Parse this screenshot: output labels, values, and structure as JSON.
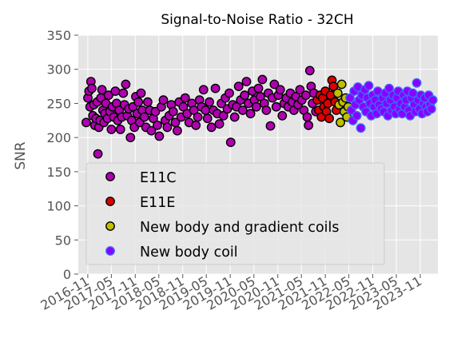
{
  "chart_data": {
    "type": "scatter",
    "title": "Signal-to-Noise Ratio - 32CH",
    "xlabel": "",
    "ylabel": "SNR",
    "ylim": [
      0,
      350
    ],
    "xlim": [
      "2016-08-20",
      "2024-03-15"
    ],
    "yticks": [
      0,
      50,
      100,
      150,
      200,
      250,
      300,
      350
    ],
    "xticks": [
      "2016-11",
      "2017-05",
      "2017-11",
      "2018-05",
      "2018-11",
      "2019-05",
      "2019-11",
      "2020-05",
      "2020-11",
      "2021-05",
      "2021-11",
      "2022-05",
      "2022-11",
      "2023-05",
      "2023-11"
    ],
    "grid": true,
    "legend_position": "lower-left",
    "series": [
      {
        "name": "E11C",
        "color": "#b000b0",
        "edge": "#000000",
        "points": [
          [
            "2016-10-20",
            222
          ],
          [
            "2016-11-02",
            258
          ],
          [
            "2016-11-10",
            268
          ],
          [
            "2016-11-18",
            245
          ],
          [
            "2016-11-25",
            282
          ],
          [
            "2016-12-02",
            272
          ],
          [
            "2016-12-10",
            232
          ],
          [
            "2016-12-18",
            248
          ],
          [
            "2016-12-25",
            218
          ],
          [
            "2017-01-03",
            228
          ],
          [
            "2017-01-12",
            252
          ],
          [
            "2017-01-18",
            176
          ],
          [
            "2017-01-25",
            215
          ],
          [
            "2017-02-03",
            225
          ],
          [
            "2017-02-10",
            258
          ],
          [
            "2017-02-18",
            270
          ],
          [
            "2017-02-25",
            240
          ],
          [
            "2017-03-05",
            222
          ],
          [
            "2017-03-12",
            235
          ],
          [
            "2017-03-20",
            250
          ],
          [
            "2017-04-01",
            228
          ],
          [
            "2017-04-10",
            262
          ],
          [
            "2017-04-20",
            238
          ],
          [
            "2017-05-01",
            212
          ],
          [
            "2017-05-10",
            245
          ],
          [
            "2017-05-20",
            230
          ],
          [
            "2017-06-01",
            268
          ],
          [
            "2017-06-10",
            250
          ],
          [
            "2017-06-20",
            225
          ],
          [
            "2017-07-01",
            240
          ],
          [
            "2017-07-10",
            212
          ],
          [
            "2017-07-20",
            230
          ],
          [
            "2017-08-01",
            265
          ],
          [
            "2017-08-10",
            248
          ],
          [
            "2017-08-20",
            278
          ],
          [
            "2017-09-01",
            232
          ],
          [
            "2017-09-12",
            242
          ],
          [
            "2017-09-25",
            200
          ],
          [
            "2017-10-05",
            225
          ],
          [
            "2017-10-15",
            245
          ],
          [
            "2017-10-25",
            215
          ],
          [
            "2017-11-05",
            260
          ],
          [
            "2017-11-15",
            235
          ],
          [
            "2017-11-25",
            252
          ],
          [
            "2017-12-05",
            222
          ],
          [
            "2017-12-15",
            265
          ],
          [
            "2017-12-25",
            240
          ],
          [
            "2018-01-10",
            230
          ],
          [
            "2018-01-22",
            215
          ],
          [
            "2018-02-05",
            252
          ],
          [
            "2018-02-20",
            240
          ],
          [
            "2018-03-05",
            210
          ],
          [
            "2018-03-20",
            228
          ],
          [
            "2018-04-05",
            238
          ],
          [
            "2018-04-20",
            218
          ],
          [
            "2018-05-05",
            202
          ],
          [
            "2018-05-20",
            245
          ],
          [
            "2018-06-05",
            255
          ],
          [
            "2018-06-20",
            225
          ],
          [
            "2018-07-05",
            215
          ],
          [
            "2018-07-20",
            232
          ],
          [
            "2018-08-05",
            248
          ],
          [
            "2018-08-20",
            238
          ],
          [
            "2018-09-05",
            222
          ],
          [
            "2018-09-20",
            210
          ],
          [
            "2018-10-05",
            252
          ],
          [
            "2018-10-20",
            230
          ],
          [
            "2018-11-05",
            245
          ],
          [
            "2018-11-20",
            258
          ],
          [
            "2018-12-05",
            235
          ],
          [
            "2018-12-20",
            222
          ],
          [
            "2019-01-10",
            250
          ],
          [
            "2019-01-25",
            240
          ],
          [
            "2019-02-10",
            218
          ],
          [
            "2019-02-25",
            230
          ],
          [
            "2019-03-10",
            255
          ],
          [
            "2019-03-25",
            245
          ],
          [
            "2019-04-10",
            270
          ],
          [
            "2019-04-25",
            240
          ],
          [
            "2019-05-10",
            228
          ],
          [
            "2019-05-25",
            252
          ],
          [
            "2019-06-10",
            215
          ],
          [
            "2019-06-25",
            240
          ],
          [
            "2019-07-10",
            272
          ],
          [
            "2019-07-25",
            235
          ],
          [
            "2019-08-10",
            220
          ],
          [
            "2019-08-25",
            250
          ],
          [
            "2019-09-10",
            232
          ],
          [
            "2019-09-25",
            258
          ],
          [
            "2019-10-10",
            242
          ],
          [
            "2019-10-25",
            265
          ],
          [
            "2019-11-05",
            193
          ],
          [
            "2019-11-20",
            248
          ],
          [
            "2019-12-05",
            230
          ],
          [
            "2019-12-20",
            245
          ],
          [
            "2020-01-05",
            275
          ],
          [
            "2020-01-20",
            255
          ],
          [
            "2020-02-05",
            240
          ],
          [
            "2020-02-20",
            262
          ],
          [
            "2020-03-05",
            282
          ],
          [
            "2020-03-20",
            250
          ],
          [
            "2020-04-05",
            235
          ],
          [
            "2020-04-20",
            268
          ],
          [
            "2020-05-05",
            255
          ],
          [
            "2020-05-20",
            245
          ],
          [
            "2020-06-05",
            272
          ],
          [
            "2020-06-20",
            260
          ],
          [
            "2020-07-05",
            285
          ],
          [
            "2020-07-20",
            250
          ],
          [
            "2020-08-05",
            240
          ],
          [
            "2020-08-20",
            265
          ],
          [
            "2020-09-05",
            217
          ],
          [
            "2020-09-20",
            258
          ],
          [
            "2020-10-05",
            278
          ],
          [
            "2020-10-20",
            245
          ],
          [
            "2020-11-05",
            262
          ],
          [
            "2020-11-20",
            270
          ],
          [
            "2020-12-05",
            232
          ],
          [
            "2020-12-20",
            250
          ],
          [
            "2021-01-05",
            258
          ],
          [
            "2021-01-20",
            245
          ],
          [
            "2021-02-05",
            265
          ],
          [
            "2021-02-20",
            252
          ],
          [
            "2021-03-05",
            240
          ],
          [
            "2021-03-20",
            260
          ],
          [
            "2021-04-05",
            248
          ],
          [
            "2021-04-20",
            270
          ],
          [
            "2021-05-05",
            255
          ],
          [
            "2021-05-20",
            240
          ],
          [
            "2021-06-05",
            262
          ],
          [
            "2021-06-15",
            230
          ],
          [
            "2021-06-25",
            218
          ],
          [
            "2021-07-05",
            298
          ],
          [
            "2021-07-15",
            275
          ],
          [
            "2021-07-25",
            250
          ],
          [
            "2021-08-05",
            265
          ],
          [
            "2021-08-20",
            238
          ]
        ]
      },
      {
        "name": "E11E",
        "color": "#dd0000",
        "edge": "#000000",
        "points": [
          [
            "2021-09-01",
            255
          ],
          [
            "2021-09-12",
            240
          ],
          [
            "2021-09-22",
            262
          ],
          [
            "2021-10-02",
            230
          ],
          [
            "2021-10-12",
            258
          ],
          [
            "2021-10-22",
            245
          ],
          [
            "2021-11-01",
            268
          ],
          [
            "2021-11-10",
            238
          ],
          [
            "2021-11-20",
            250
          ],
          [
            "2021-12-01",
            228
          ],
          [
            "2021-12-12",
            262
          ],
          [
            "2021-12-22",
            284
          ],
          [
            "2022-01-03",
            275
          ],
          [
            "2022-01-15",
            252
          ],
          [
            "2022-01-25",
            240
          ]
        ]
      },
      {
        "name": "New body and gradient coils",
        "color": "#bfbf00",
        "edge": "#000000",
        "points": [
          [
            "2022-02-05",
            265
          ],
          [
            "2022-02-15",
            248
          ],
          [
            "2022-02-25",
            222
          ],
          [
            "2022-03-07",
            278
          ],
          [
            "2022-03-17",
            252
          ],
          [
            "2022-03-27",
            238
          ],
          [
            "2022-04-06",
            258
          ],
          [
            "2022-04-16",
            230
          ],
          [
            "2022-04-26",
            245
          ]
        ]
      },
      {
        "name": "New body coil",
        "color": "#8a00ff",
        "edge": "#3a66ff",
        "points": [
          [
            "2022-05-10",
            258
          ],
          [
            "2022-05-20",
            240
          ],
          [
            "2022-06-01",
            225
          ],
          [
            "2022-06-10",
            268
          ],
          [
            "2022-06-20",
            248
          ],
          [
            "2022-07-01",
            232
          ],
          [
            "2022-07-10",
            274
          ],
          [
            "2022-07-20",
            255
          ],
          [
            "2022-08-01",
            214
          ],
          [
            "2022-08-10",
            262
          ],
          [
            "2022-08-20",
            245
          ],
          [
            "2022-09-01",
            270
          ],
          [
            "2022-09-10",
            238
          ],
          [
            "2022-09-20",
            258
          ],
          [
            "2022-10-01",
            276
          ],
          [
            "2022-10-10",
            250
          ],
          [
            "2022-10-20",
            232
          ],
          [
            "2022-11-01",
            262
          ],
          [
            "2022-11-10",
            245
          ],
          [
            "2022-11-20",
            255
          ],
          [
            "2022-12-01",
            235
          ],
          [
            "2022-12-10",
            268
          ],
          [
            "2022-12-20",
            248
          ],
          [
            "2023-01-05",
            242
          ],
          [
            "2023-01-15",
            258
          ],
          [
            "2023-01-25",
            238
          ],
          [
            "2023-02-05",
            265
          ],
          [
            "2023-02-15",
            250
          ],
          [
            "2023-02-25",
            232
          ],
          [
            "2023-03-07",
            272
          ],
          [
            "2023-03-17",
            255
          ],
          [
            "2023-03-27",
            240
          ],
          [
            "2023-04-06",
            262
          ],
          [
            "2023-04-16",
            245
          ],
          [
            "2023-04-26",
            235
          ],
          [
            "2023-05-06",
            258
          ],
          [
            "2023-05-16",
            268
          ],
          [
            "2023-05-26",
            242
          ],
          [
            "2023-06-05",
            250
          ],
          [
            "2023-06-15",
            235
          ],
          [
            "2023-06-25",
            262
          ],
          [
            "2023-07-05",
            245
          ],
          [
            "2023-07-15",
            255
          ],
          [
            "2023-07-25",
            268
          ],
          [
            "2023-08-05",
            240
          ],
          [
            "2023-08-15",
            232
          ],
          [
            "2023-08-25",
            258
          ],
          [
            "2023-09-05",
            265
          ],
          [
            "2023-09-15",
            248
          ],
          [
            "2023-09-25",
            238
          ],
          [
            "2023-10-05",
            280
          ],
          [
            "2023-10-15",
            255
          ],
          [
            "2023-10-25",
            242
          ],
          [
            "2023-11-05",
            262
          ],
          [
            "2023-11-15",
            235
          ],
          [
            "2023-11-25",
            250
          ],
          [
            "2023-12-05",
            258
          ],
          [
            "2023-12-15",
            245
          ],
          [
            "2023-12-25",
            238
          ],
          [
            "2024-01-05",
            262
          ],
          [
            "2024-01-15",
            248
          ],
          [
            "2024-01-25",
            242
          ],
          [
            "2024-02-05",
            255
          ]
        ]
      }
    ]
  }
}
